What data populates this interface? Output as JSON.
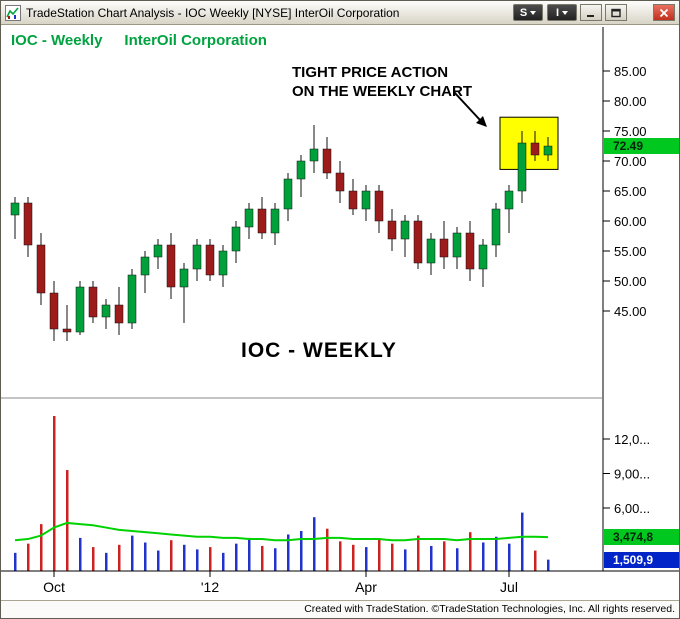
{
  "window": {
    "title": "TradeStation Chart Analysis - IOC Weekly [NYSE] InterOil Corporation",
    "menu_buttons": [
      {
        "label": "S"
      },
      {
        "label": "I"
      }
    ]
  },
  "header": {
    "symbol": "IOC - Weekly",
    "company": "InterOil Corporation",
    "color": "#00a33f"
  },
  "annotation": {
    "line1": "TIGHT PRICE ACTION",
    "line2": "ON THE WEEKLY CHART"
  },
  "pane_label": "IOC - WEEKLY",
  "badges": {
    "last_price": "72.49",
    "volume_ma": "3,474,8",
    "last_volume": "1,509,9"
  },
  "footer": {
    "text": "Created with TradeStation. ©TradeStation Technologies, Inc. All rights reserved."
  },
  "chart_data": {
    "type": "candlestick",
    "symbol": "IOC",
    "interval": "Weekly",
    "exchange": "NYSE",
    "title": "IOC - Weekly InterOil Corporation",
    "columns": [
      "open",
      "high",
      "low",
      "close",
      "volume_millions"
    ],
    "candles": [
      [
        61,
        64,
        57,
        63,
        2.1
      ],
      [
        63,
        64,
        54,
        56,
        2.9
      ],
      [
        56,
        58,
        46,
        48,
        4.6
      ],
      [
        48,
        50,
        40,
        42,
        14.0
      ],
      [
        42,
        46,
        40,
        41.5,
        9.3
      ],
      [
        41.5,
        50,
        41,
        49,
        3.4
      ],
      [
        49,
        50,
        43,
        44,
        2.6
      ],
      [
        44,
        47,
        42,
        46,
        2.1
      ],
      [
        46,
        49,
        41,
        43,
        2.8
      ],
      [
        43,
        52,
        42,
        51,
        3.6
      ],
      [
        51,
        55,
        48,
        54,
        3.0
      ],
      [
        54,
        57,
        52,
        56,
        2.3
      ],
      [
        56,
        58,
        47,
        49,
        3.2
      ],
      [
        49,
        53,
        43,
        52,
        2.8
      ],
      [
        52,
        57,
        50,
        56,
        2.4
      ],
      [
        56,
        57,
        50,
        51,
        2.6
      ],
      [
        51,
        56,
        49,
        55,
        2.1
      ],
      [
        55,
        60,
        53,
        59,
        2.9
      ],
      [
        59,
        63,
        57,
        62,
        3.4
      ],
      [
        62,
        64,
        57,
        58,
        2.7
      ],
      [
        58,
        63,
        56,
        62,
        2.5
      ],
      [
        62,
        68,
        60,
        67,
        3.7
      ],
      [
        67,
        71,
        64,
        70,
        4.0
      ],
      [
        70,
        76,
        68,
        72,
        5.2
      ],
      [
        72,
        74,
        67,
        68,
        4.2
      ],
      [
        68,
        70,
        63,
        65,
        3.1
      ],
      [
        65,
        67,
        61,
        62,
        2.8
      ],
      [
        62,
        66,
        60,
        65,
        2.6
      ],
      [
        65,
        66,
        58,
        60,
        3.3
      ],
      [
        60,
        62,
        55,
        57,
        2.9
      ],
      [
        57,
        61,
        54,
        60,
        2.4
      ],
      [
        60,
        61,
        52,
        53,
        3.6
      ],
      [
        53,
        58,
        51,
        57,
        2.7
      ],
      [
        57,
        60,
        52,
        54,
        3.1
      ],
      [
        54,
        59,
        52,
        58,
        2.5
      ],
      [
        58,
        60,
        50,
        52,
        3.9
      ],
      [
        52,
        57,
        49,
        56,
        3.0
      ],
      [
        56,
        63,
        54,
        62,
        3.5
      ],
      [
        62,
        66,
        58,
        65,
        2.9
      ],
      [
        65,
        75,
        63,
        73,
        5.6
      ],
      [
        73,
        75,
        70,
        71,
        2.3
      ],
      [
        71,
        74,
        70,
        72.49,
        1.5099
      ]
    ],
    "volume_ma_millions": [
      3.2,
      3.3,
      3.6,
      4.3,
      4.7,
      4.6,
      4.5,
      4.3,
      4.1,
      4.0,
      3.9,
      3.8,
      3.7,
      3.6,
      3.5,
      3.5,
      3.4,
      3.4,
      3.3,
      3.3,
      3.2,
      3.2,
      3.3,
      3.3,
      3.4,
      3.4,
      3.3,
      3.3,
      3.3,
      3.2,
      3.2,
      3.3,
      3.3,
      3.3,
      3.2,
      3.3,
      3.3,
      3.3,
      3.4,
      3.5,
      3.5,
      3.47
    ],
    "price_axis_ticks": [
      {
        "label": "85.00",
        "value": 85
      },
      {
        "label": "80.00",
        "value": 80
      },
      {
        "label": "75.00",
        "value": 75
      },
      {
        "label": "70.00",
        "value": 70
      },
      {
        "label": "65.00",
        "value": 65
      },
      {
        "label": "60.00",
        "value": 60
      },
      {
        "label": "55.00",
        "value": 55
      },
      {
        "label": "50.00",
        "value": 50
      },
      {
        "label": "45.00",
        "value": 45
      }
    ],
    "volume_axis_ticks": [
      {
        "label": "12,0...",
        "value": 12
      },
      {
        "label": "9,00...",
        "value": 9
      },
      {
        "label": "6,00...",
        "value": 6
      }
    ],
    "x_axis_labels": [
      {
        "label": "Oct",
        "index": 3
      },
      {
        "label": "'12",
        "index": 15
      },
      {
        "label": "Apr",
        "index": 27
      },
      {
        "label": "Jul",
        "index": 38
      }
    ],
    "last_price": 72.49,
    "last_volume": 1509900,
    "volume_ma_last": 3474800,
    "highlight_box": {
      "start_index": 38,
      "end_index": 41,
      "price_top": 77.3,
      "price_bottom": 68.6,
      "fill": "#ffff00"
    },
    "colors": {
      "up": "#00a13b",
      "down": "#9e1b1b",
      "wick": "#111111",
      "volume_up": "#2233cc",
      "volume_down": "#cc2222",
      "volume_ma": "#00d200",
      "last_price_bg": "#00c81e",
      "last_volume_bg": "#0024c8",
      "highlight": "#ffff00"
    },
    "layout": {
      "price_axis_range": [
        38,
        88
      ],
      "volume_axis_range_millions": [
        0,
        14
      ],
      "grid": false,
      "panes": [
        "price",
        "volume"
      ]
    }
  }
}
